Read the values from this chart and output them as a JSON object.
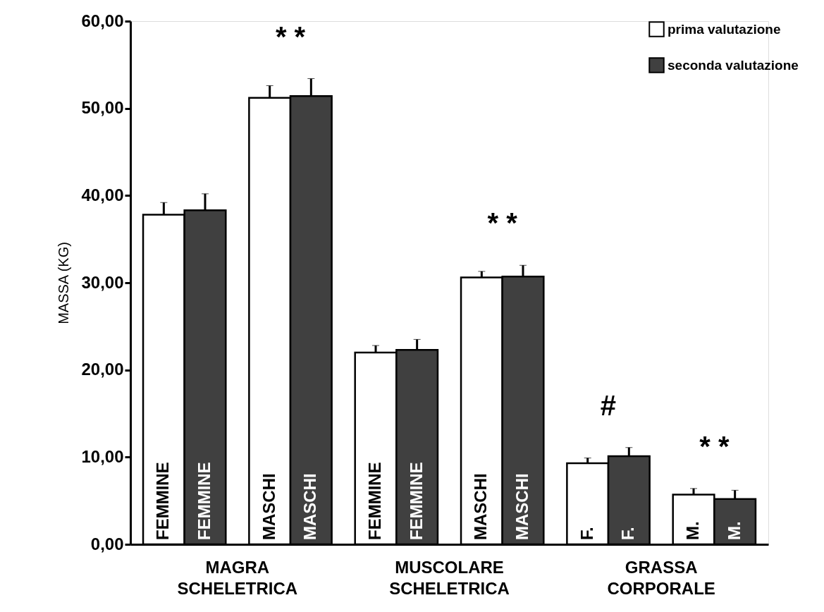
{
  "chart_data": {
    "type": "bar",
    "ylabel": "MASSA (KG)",
    "categories": [
      "FEMMINE",
      "MASCHI",
      "FEMMINE",
      "MASCHI",
      "F.",
      "M."
    ],
    "series": [
      {
        "name": "prima valutazione",
        "color": "#ffffff",
        "values": [
          37.8,
          51.2,
          22.0,
          30.6,
          9.3,
          5.7
        ],
        "errors": [
          [
            37.8,
            39.2
          ],
          [
            51.2,
            52.6
          ],
          [
            22.0,
            22.8
          ],
          [
            30.6,
            31.3
          ],
          [
            9.3,
            9.9
          ],
          [
            5.7,
            6.4
          ]
        ]
      },
      {
        "name": "seconda valutazione",
        "color": "#404040",
        "values": [
          38.3,
          51.4,
          22.3,
          30.7,
          10.1,
          5.2
        ],
        "errors": [
          [
            38.3,
            40.2
          ],
          [
            51.4,
            53.4
          ],
          [
            22.3,
            23.5
          ],
          [
            30.7,
            32.0
          ],
          [
            10.1,
            11.1
          ],
          [
            5.2,
            6.2
          ]
        ]
      }
    ],
    "ylim": [
      0,
      60
    ],
    "yticks": [
      {
        "value": 0,
        "label": "0,00"
      },
      {
        "value": 10,
        "label": "10,00"
      },
      {
        "value": 20,
        "label": "20,00"
      },
      {
        "value": 30,
        "label": "30,00"
      },
      {
        "value": 40,
        "label": "40,00"
      },
      {
        "value": 50,
        "label": "50,00"
      },
      {
        "value": 60,
        "label": "60,00"
      }
    ],
    "annotations": [
      {
        "text": "* *",
        "x": "MASCHI",
        "y": 53.4
      },
      "* *",
      {
        "text": "#",
        "x": "F.",
        "y": 11.1
      },
      {
        "text": "* *",
        "x": "M.",
        "y": 6.4
      },
      "MAGRA\nSCHELETRICA",
      "MUSCOLARE\nSCHELETRICA",
      "GRASSA\nCORPORALE"
    ],
    "legend": "top right",
    "grid": false
  }
}
